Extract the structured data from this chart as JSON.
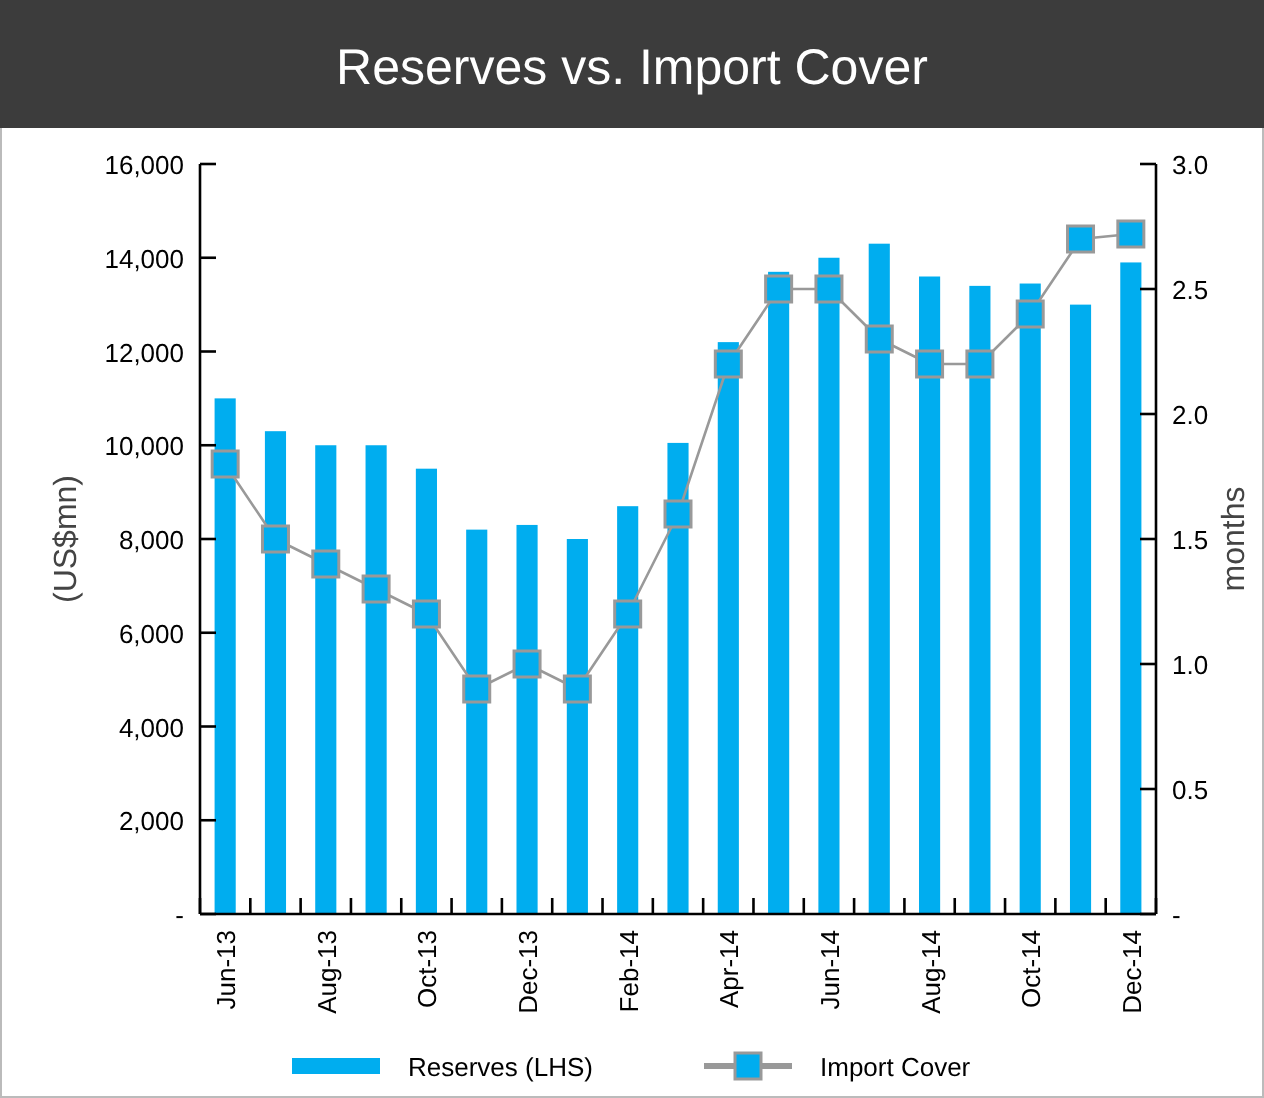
{
  "chart_data": {
    "type": "bar",
    "title": "Reserves vs. Import Cover",
    "ylabel": "(US$mn)",
    "y2label": "months",
    "categories": [
      "Jun-13",
      null,
      "Aug-13",
      null,
      "Oct-13",
      null,
      "Dec-13",
      null,
      "Feb-14",
      null,
      "Apr-14",
      null,
      "Jun-14",
      null,
      "Aug-14",
      null,
      "Oct-14",
      null,
      "Dec-14"
    ],
    "series": [
      {
        "name": "Reserves (LHS)",
        "color": "#00adef",
        "values": [
          11000,
          10300,
          10000,
          10000,
          9500,
          8200,
          8300,
          8000,
          8700,
          10050,
          12200,
          13700,
          14000,
          14300,
          13600,
          13400,
          13450,
          13000,
          13900
        ]
      },
      {
        "name": "Import Cover",
        "type": "line",
        "axis": "y2",
        "color": "#999999",
        "values": [
          1.8,
          1.5,
          1.4,
          1.3,
          1.2,
          0.9,
          1.0,
          0.9,
          1.2,
          1.6,
          2.2,
          2.5,
          2.5,
          2.3,
          2.2,
          2.2,
          2.4,
          2.7,
          2.72
        ]
      }
    ],
    "ylim": [
      0,
      16000
    ],
    "yticks": [
      {
        "value": 0,
        "label": "-"
      },
      {
        "value": 2000,
        "label": "2,000"
      },
      {
        "value": 4000,
        "label": "4,000"
      },
      {
        "value": 6000,
        "label": "6,000"
      },
      {
        "value": 8000,
        "label": "8,000"
      },
      {
        "value": 10000,
        "label": "10,000"
      },
      {
        "value": 12000,
        "label": "12,000"
      },
      {
        "value": 14000,
        "label": "14,000"
      },
      {
        "value": 16000,
        "label": "16,000"
      }
    ],
    "y2lim": [
      0,
      3
    ],
    "y2ticks": [
      {
        "value": 0,
        "label": "-"
      },
      {
        "value": 0.5,
        "label": "0.5"
      },
      {
        "value": 1,
        "label": "1.0"
      },
      {
        "value": 1.5,
        "label": "1.5"
      },
      {
        "value": 2,
        "label": "2.0"
      },
      {
        "value": 2.5,
        "label": "2.5"
      },
      {
        "value": 3,
        "label": "3.0"
      }
    ],
    "marker": "square",
    "legend": "bottom",
    "grid": false
  }
}
